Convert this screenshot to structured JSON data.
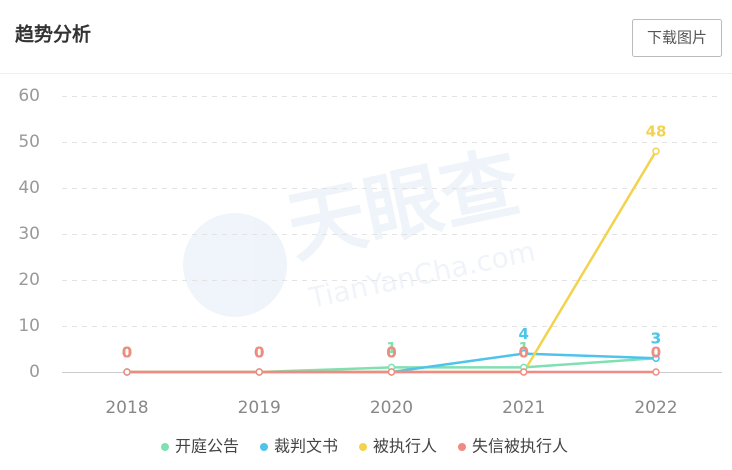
{
  "header": {
    "title": "趋势分析",
    "button": "下载图片"
  },
  "watermark": {
    "logo": "天眼查",
    "site": "TianYanCha.com"
  },
  "chart_data": {
    "type": "line",
    "categories": [
      "2018",
      "2019",
      "2020",
      "2021",
      "2022"
    ],
    "series": [
      {
        "name": "开庭公告",
        "color": "#7fe0b2",
        "values": [
          0,
          0,
          1,
          1,
          3
        ]
      },
      {
        "name": "裁判文书",
        "color": "#4ec4ea",
        "values": [
          0,
          0,
          0,
          4,
          3
        ]
      },
      {
        "name": "被执行人",
        "color": "#f3d34e",
        "values": [
          0,
          0,
          0,
          0,
          48
        ]
      },
      {
        "name": "失信被执行人",
        "color": "#f08a82",
        "values": [
          0,
          0,
          0,
          0,
          0
        ]
      }
    ],
    "ylim": [
      0,
      60
    ],
    "yticks": [
      0,
      10,
      20,
      30,
      40,
      50,
      60
    ],
    "grid": true,
    "data_labels": true,
    "legend": "bottom"
  }
}
